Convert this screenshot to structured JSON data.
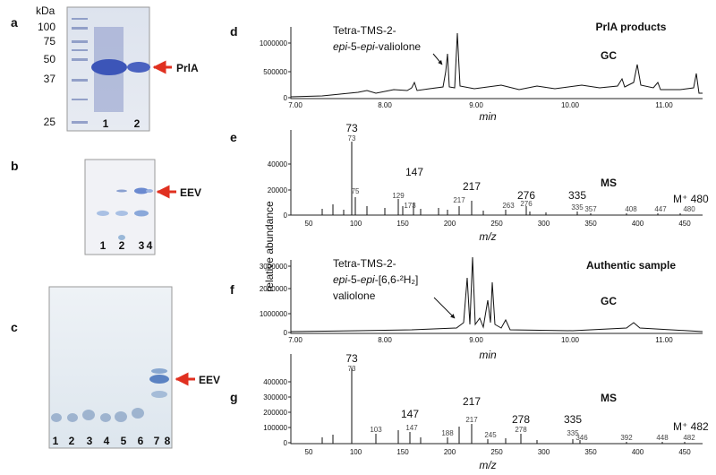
{
  "panels": {
    "a": {
      "label": "a",
      "unit": "kDa",
      "markers": [
        "100",
        "75",
        "50",
        "37",
        "25"
      ],
      "lanes": [
        "1",
        "2"
      ],
      "arrow_label": "PrlA"
    },
    "b": {
      "label": "b",
      "lanes": [
        "1",
        "2",
        "3",
        "4"
      ],
      "arrow_label": "EEV"
    },
    "c": {
      "label": "c",
      "lanes": [
        "1",
        "2",
        "3",
        "4",
        "5",
        "6",
        "7",
        "8"
      ],
      "arrow_label": "EEV"
    },
    "d": {
      "label": "d",
      "title": "PrlA products",
      "method": "GC",
      "annotation": [
        [
          "Tetra-TMS-2-"
        ],
        [
          "epi",
          "-5-",
          "epi",
          "-valiolone"
        ]
      ],
      "yticks": [
        "1000000",
        "500000",
        "0"
      ],
      "xticks": [
        "7.00",
        "8.00",
        "9.00",
        "10.00",
        "11.00"
      ],
      "xlabel": "min"
    },
    "e": {
      "label": "e",
      "method": "MS",
      "yticks": [
        "40000",
        "20000",
        "0"
      ],
      "xticks": [
        "50",
        "100",
        "150",
        "200",
        "250",
        "300",
        "350",
        "400",
        "450"
      ],
      "xlabel": "m/z",
      "peak_labels": [
        "73",
        "147",
        "217",
        "276",
        "335",
        "M⁺ 480"
      ],
      "minor_labels": [
        "73",
        "75",
        "129",
        "173",
        "217",
        "263",
        "276",
        "335",
        "357",
        "408",
        "447",
        "480"
      ]
    },
    "f": {
      "label": "f",
      "title": "Authentic sample",
      "method": "GC",
      "annotation": [
        [
          "Tetra-TMS-2-"
        ],
        [
          "epi",
          "-5-",
          "epi",
          "-[6,6-²H₂]"
        ],
        [
          "valiolone"
        ]
      ],
      "yticks": [
        "3000000",
        "2000000",
        "1000000",
        "0"
      ],
      "xticks": [
        "7.00",
        "8.00",
        "9.00",
        "10.00",
        "11.00"
      ],
      "xlabel": "min"
    },
    "g": {
      "label": "g",
      "method": "MS",
      "yticks": [
        "400000",
        "300000",
        "200000",
        "100000",
        "0"
      ],
      "xticks": [
        "50",
        "100",
        "150",
        "200",
        "250",
        "300",
        "350",
        "400",
        "450"
      ],
      "xlabel": "m/z",
      "peak_labels": [
        "73",
        "147",
        "217",
        "278",
        "335",
        "M⁺ 482"
      ],
      "minor_labels": [
        "73",
        "103",
        "147",
        "188",
        "217",
        "245",
        "278",
        "335",
        "346",
        "392",
        "448",
        "482"
      ]
    }
  },
  "ylabel": "relative abundance"
}
